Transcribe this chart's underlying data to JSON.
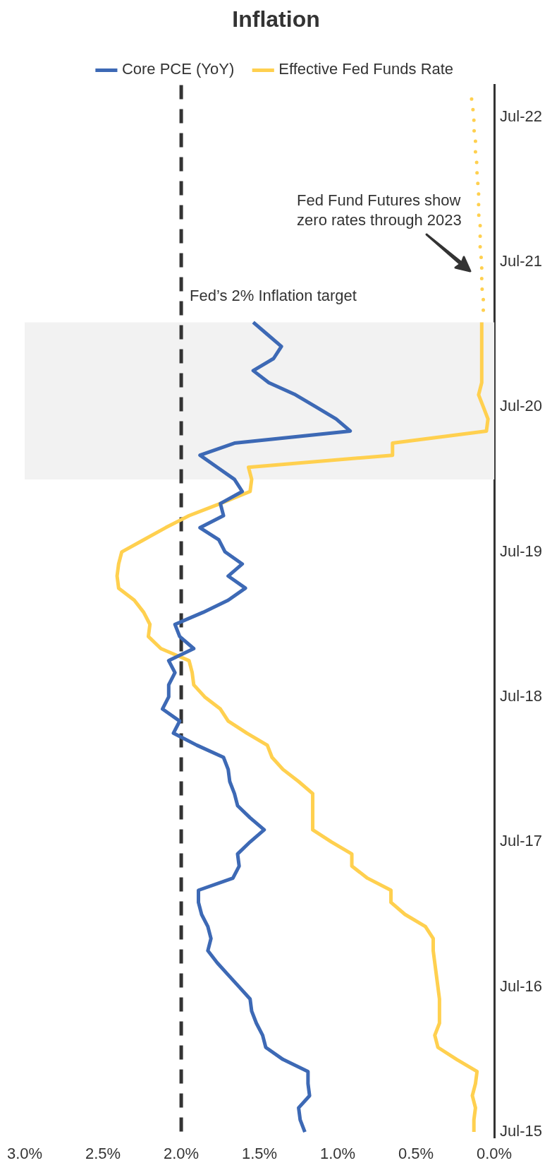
{
  "chart_data": {
    "type": "line",
    "title": "Inflation",
    "legend": "top",
    "orientation": "horizontal",
    "x": [
      "2015-07",
      "2015-08",
      "2015-09",
      "2015-10",
      "2015-11",
      "2015-12",
      "2016-01",
      "2016-02",
      "2016-03",
      "2016-04",
      "2016-05",
      "2016-06",
      "2016-07",
      "2016-08",
      "2016-09",
      "2016-10",
      "2016-11",
      "2016-12",
      "2017-01",
      "2017-02",
      "2017-03",
      "2017-04",
      "2017-05",
      "2017-06",
      "2017-07",
      "2017-08",
      "2017-09",
      "2017-10",
      "2017-11",
      "2017-12",
      "2018-01",
      "2018-02",
      "2018-03",
      "2018-04",
      "2018-05",
      "2018-06",
      "2018-07",
      "2018-08",
      "2018-09",
      "2018-10",
      "2018-11",
      "2018-12",
      "2019-01",
      "2019-02",
      "2019-03",
      "2019-04",
      "2019-05",
      "2019-06",
      "2019-07",
      "2019-08",
      "2019-09",
      "2019-10",
      "2019-11",
      "2019-12",
      "2020-01",
      "2020-02",
      "2020-03",
      "2020-04",
      "2020-05",
      "2020-06",
      "2020-07",
      "2020-08",
      "2020-09",
      "2020-10",
      "2020-11",
      "2020-12",
      "2021-01",
      "2021-02"
    ],
    "series": [
      {
        "name": "Core PCE (YoY)",
        "color": "#3d69b5",
        "values": [
          1.21,
          1.24,
          1.25,
          1.18,
          1.19,
          1.19,
          1.35,
          1.46,
          1.48,
          1.52,
          1.55,
          1.56,
          1.63,
          1.7,
          1.77,
          1.83,
          1.81,
          1.83,
          1.87,
          1.89,
          1.89,
          1.67,
          1.63,
          1.64,
          1.56,
          1.47,
          1.56,
          1.64,
          1.66,
          1.69,
          1.7,
          1.73,
          1.9,
          2.05,
          2.01,
          2.12,
          2.08,
          2.08,
          2.04,
          2.08,
          1.92,
          2.01,
          2.04,
          1.86,
          1.7,
          1.59,
          1.7,
          1.61,
          1.72,
          1.76,
          1.88,
          1.73,
          1.75,
          1.61,
          1.66,
          1.77,
          1.88,
          1.66,
          0.92,
          1.01,
          1.14,
          1.27,
          1.44,
          1.54,
          1.41,
          1.36,
          1.45,
          1.54
        ]
      },
      {
        "name": "Effective Fed Funds Rate",
        "color": "#ffd04f",
        "values": [
          0.13,
          0.13,
          0.12,
          0.14,
          0.12,
          0.11,
          0.24,
          0.36,
          0.38,
          0.35,
          0.35,
          0.35,
          0.36,
          0.37,
          0.38,
          0.39,
          0.39,
          0.44,
          0.57,
          0.66,
          0.66,
          0.81,
          0.91,
          0.91,
          1.04,
          1.16,
          1.16,
          1.16,
          1.16,
          1.25,
          1.35,
          1.42,
          1.45,
          1.58,
          1.7,
          1.75,
          1.85,
          1.92,
          1.93,
          1.95,
          2.13,
          2.21,
          2.2,
          2.24,
          2.3,
          2.4,
          2.41,
          2.4,
          2.38,
          2.24,
          2.1,
          1.95,
          1.75,
          1.56,
          1.55,
          1.57,
          0.65,
          0.65,
          0.05,
          0.04,
          0.07,
          0.1,
          0.08,
          0.08,
          0.08,
          0.08,
          0.08,
          0.08
        ]
      },
      {
        "color": "#ffd04f",
        "line_style": "dotted",
        "x": [
          "2021-03",
          "2021-04",
          "2021-05",
          "2021-06",
          "2021-07",
          "2021-08",
          "2021-09",
          "2021-10",
          "2021-11",
          "2021-12",
          "2022-01",
          "2022-02",
          "2022-03",
          "2022-04",
          "2022-05",
          "2022-06",
          "2022-07",
          "2022-08",
          "2022-09"
        ],
        "values": [
          0.07,
          0.07,
          0.08,
          0.08,
          0.08,
          0.09,
          0.09,
          0.09,
          0.1,
          0.1,
          0.1,
          0.11,
          0.11,
          0.12,
          0.12,
          0.13,
          0.13,
          0.14,
          0.15
        ]
      }
    ],
    "ylim": [
      "2015-06-16",
      "2022-09-20"
    ],
    "yticks": [
      {
        "value": "2015-07",
        "label": "Jul-15"
      },
      {
        "value": "2016-07",
        "label": "Jul-16"
      },
      {
        "value": "2017-07",
        "label": "Jul-17"
      },
      {
        "value": "2018-07",
        "label": "Jul-18"
      },
      {
        "value": "2019-07",
        "label": "Jul-19"
      },
      {
        "value": "2020-07",
        "label": "Jul-20"
      },
      {
        "value": "2021-07",
        "label": "Jul-21"
      },
      {
        "value": "2022-07",
        "label": "Jul-22"
      }
    ],
    "xlim": [
      3,
      0
    ],
    "xticks": [
      {
        "value": 3,
        "label": "3.0%"
      },
      {
        "value": 2.5,
        "label": "2.5%"
      },
      {
        "value": 2,
        "label": "2.0%"
      },
      {
        "value": 1.5,
        "label": "1.5%"
      },
      {
        "value": 1,
        "label": "1.0%"
      },
      {
        "value": 0.5,
        "label": "0.5%"
      },
      {
        "value": 0,
        "label": "0.0%"
      }
    ],
    "grid": false,
    "ref_lines": [
      {
        "axis": "x",
        "value": 2,
        "label": "Fed’s 2% Inflation target",
        "color": "#333333",
        "line_style": "dashed"
      }
    ],
    "bands": [
      {
        "axis": "y",
        "from": "2020-01",
        "to": "2021-02",
        "color": "#f2f2f2"
      }
    ],
    "annotations": [
      "Fed Fund Futures show zero rates through 2023"
    ]
  }
}
